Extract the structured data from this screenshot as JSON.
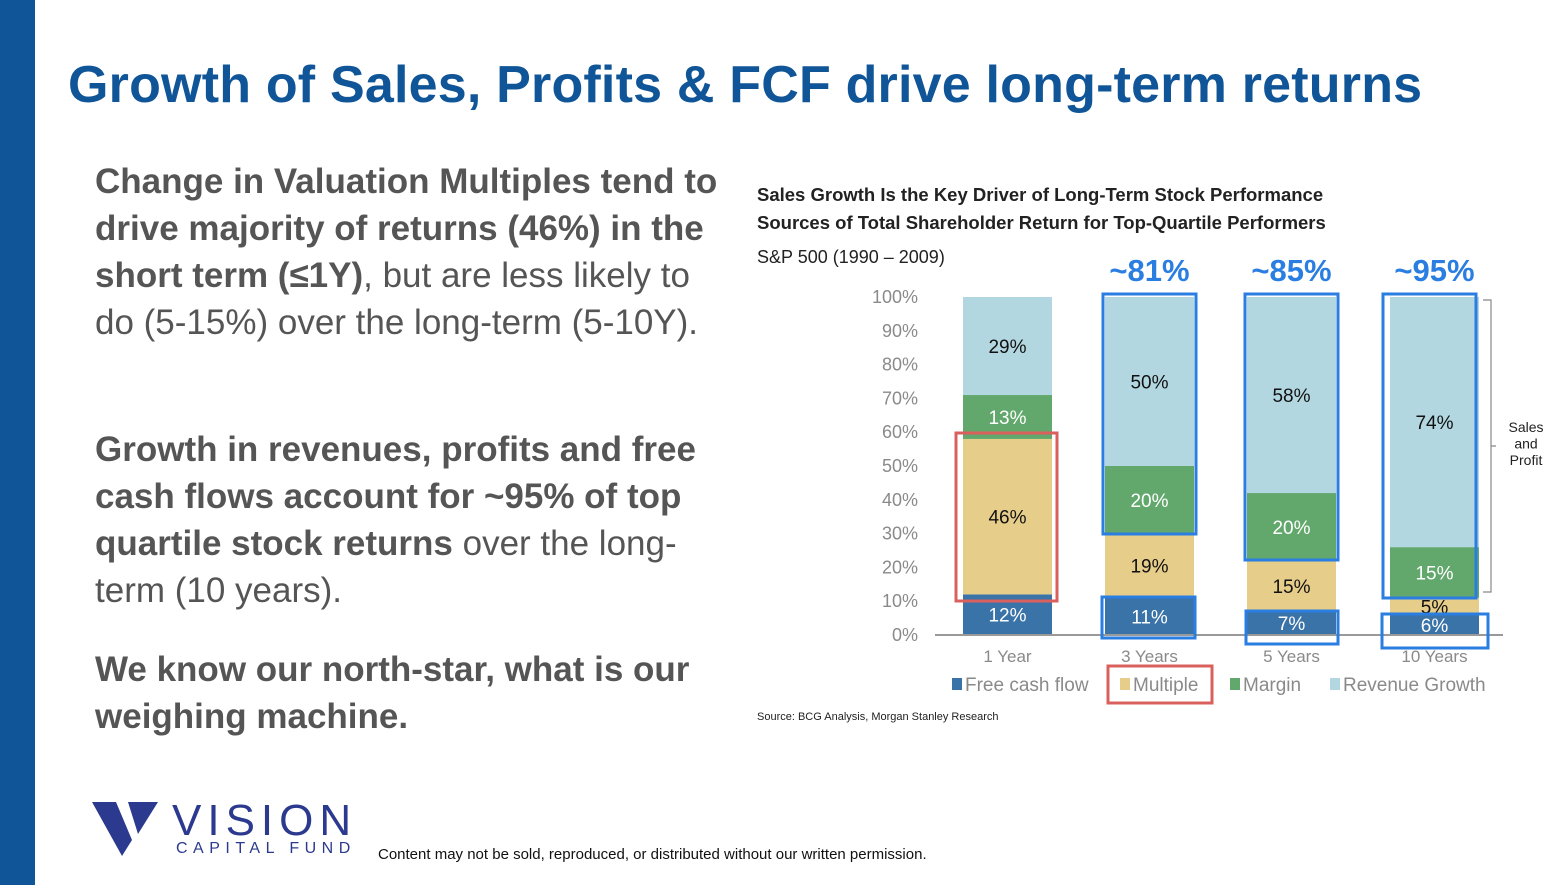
{
  "slide": {
    "title": "Growth of Sales, Profits & FCF drive long-term returns",
    "paragraphs": [
      {
        "bold": "Change in Valuation Multiples tend to drive majority of returns (46%) in the short term (≤1Y)",
        "regular": ", but are less likely to do (5-15%) over the long-term (5-10Y)."
      },
      {
        "bold": "Growth in revenues, profits and free cash flows account for ~95% of top quartile stock returns",
        "regular": " over the long-term (10 years)."
      },
      {
        "bold": "We know our north-star, what is our weighing machine.",
        "regular": ""
      }
    ],
    "footer": "Content may not be sold, reproduced, or distributed without our written permission.",
    "logo": {
      "name": "VISION",
      "subtitle": "CAPITAL FUND",
      "color": "#2b3a8f"
    },
    "accent_color": "#0f5597"
  },
  "chart_data": {
    "type": "bar",
    "stacked": true,
    "title": "Sales Growth Is the Key Driver of Long-Term Stock Performance",
    "subtitle": "Sources of Total Shareholder Return for Top-Quartile Performers",
    "note": "S&P 500 (1990 – 2009)",
    "source": "Source: BCG Analysis, Morgan Stanley Research",
    "categories": [
      "1 Year",
      "3 Years",
      "5 Years",
      "10 Years"
    ],
    "ylim": [
      0,
      100
    ],
    "yticks": [
      "0%",
      "10%",
      "20%",
      "30%",
      "40%",
      "50%",
      "60%",
      "70%",
      "80%",
      "90%",
      "100%"
    ],
    "legend_position": "bottom",
    "series": [
      {
        "name": "Free cash flow",
        "values": [
          12,
          11,
          7,
          6
        ],
        "color": "#3a73a8",
        "label_color": "#ffffff"
      },
      {
        "name": "Multiple",
        "values": [
          46,
          19,
          15,
          5
        ],
        "color": "#e6cd8a",
        "label_color": "#111111"
      },
      {
        "name": "Margin",
        "values": [
          13,
          20,
          20,
          15
        ],
        "color": "#62a86c",
        "label_color": "#ffffff"
      },
      {
        "name": "Revenue Growth",
        "values": [
          29,
          50,
          58,
          74
        ],
        "color": "#b3d7e1",
        "label_color": "#111111"
      }
    ],
    "annotations": {
      "totals": [
        "",
        "~81%",
        "~85%",
        "~95%"
      ],
      "bracket_label": "Sales and Profit",
      "highlight_color": "#2a7de1",
      "multiple_highlight_color": "#d9605d"
    }
  }
}
